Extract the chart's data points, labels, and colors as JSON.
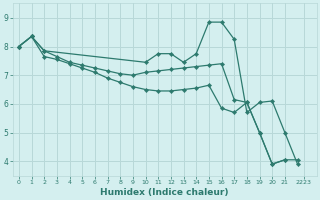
{
  "xlabel": "Humidex (Indice chaleur)",
  "bg_color": "#d4efef",
  "grid_color": "#b8d8d8",
  "line_color": "#2d7a6e",
  "xlim": [
    -0.5,
    23.5
  ],
  "ylim": [
    3.5,
    9.5
  ],
  "yticks": [
    4,
    5,
    6,
    7,
    8,
    9
  ],
  "xtick_labels": [
    "0",
    "1",
    "2",
    "3",
    "4",
    "5",
    "6",
    "7",
    "8",
    "9",
    "10",
    "11",
    "12",
    "13",
    "14",
    "15",
    "16",
    "17",
    "18",
    "19",
    "20",
    "21",
    "2223"
  ],
  "xtick_pos": [
    0,
    1,
    2,
    3,
    4,
    5,
    6,
    7,
    8,
    9,
    10,
    11,
    12,
    13,
    14,
    15,
    16,
    17,
    18,
    19,
    20,
    21,
    22.5
  ],
  "series": [
    {
      "x": [
        0,
        1,
        2,
        3,
        4,
        5,
        6,
        7,
        8,
        9,
        10,
        11,
        12,
        13,
        14,
        15,
        16,
        17,
        18,
        19,
        20,
        21
      ],
      "y": [
        8.0,
        8.35,
        7.85,
        7.65,
        7.45,
        7.35,
        7.25,
        7.15,
        7.05,
        7.0,
        7.1,
        7.15,
        7.2,
        7.25,
        7.3,
        7.35,
        7.4,
        6.15,
        6.05,
        5.0,
        3.9,
        4.05
      ]
    },
    {
      "x": [
        0,
        1,
        2,
        10,
        11,
        12,
        13,
        14,
        15,
        16,
        17,
        18,
        19,
        20,
        21,
        22
      ],
      "y": [
        8.0,
        8.35,
        7.85,
        7.45,
        7.75,
        7.75,
        7.45,
        7.75,
        8.85,
        8.85,
        8.25,
        5.7,
        6.05,
        6.1,
        5.0,
        3.9
      ]
    },
    {
      "x": [
        0,
        1,
        2,
        3,
        4,
        5,
        6,
        7,
        8,
        9,
        10,
        11,
        12,
        13,
        14,
        15,
        16,
        17,
        18,
        19,
        20,
        21,
        22
      ],
      "y": [
        8.0,
        8.35,
        7.65,
        7.55,
        7.4,
        7.25,
        7.1,
        6.9,
        6.75,
        6.6,
        6.5,
        6.45,
        6.45,
        6.5,
        6.55,
        6.65,
        5.85,
        5.7,
        6.05,
        5.0,
        3.9,
        4.05,
        4.05
      ]
    }
  ]
}
